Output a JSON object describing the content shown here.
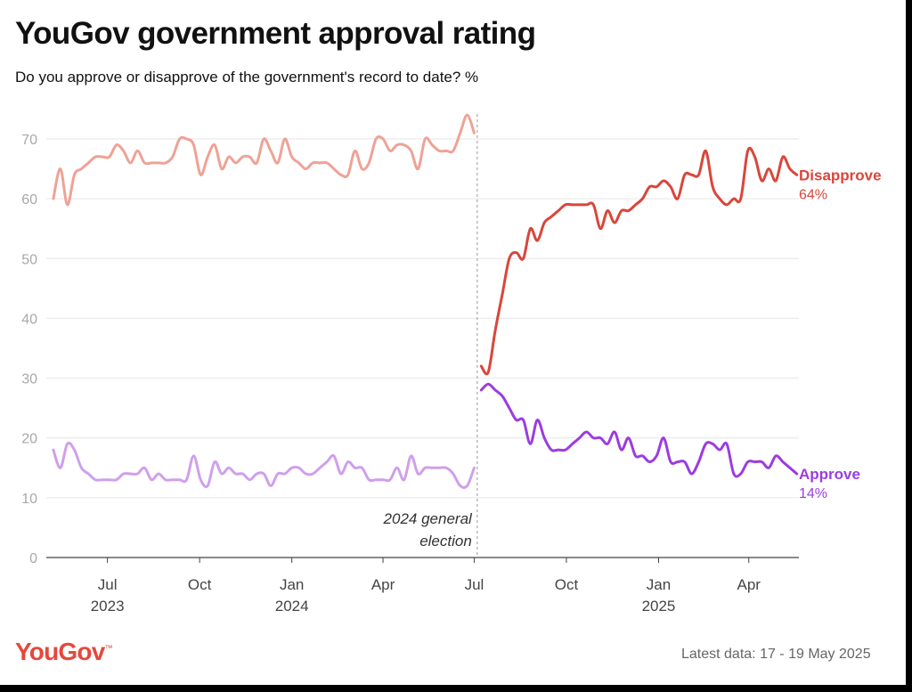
{
  "header": {
    "title": "YouGov government approval rating",
    "subtitle": "Do you approve or disapprove of the government's record to date? %"
  },
  "footer": {
    "brand": "YouGov",
    "latest": "Latest data: 17 - 19 May 2025"
  },
  "colors": {
    "disapprove": "#d9463b",
    "disapprove_before": "#eea296",
    "approve": "#9b3ce0",
    "approve_before": "#cf9fec",
    "grid": "#e6e6e6",
    "divider": "#aaaaaa",
    "brand": "#e4483d"
  },
  "chart_data": {
    "type": "line",
    "title": "YouGov government approval rating",
    "subtitle": "Do you approve or disapprove of the government's record to date? %",
    "ylabel": "",
    "ylim": [
      0,
      70
    ],
    "yticks": [
      0,
      10,
      20,
      30,
      40,
      50,
      60,
      70
    ],
    "xlim": [
      "2023-05-01",
      "2025-05-21"
    ],
    "x_ticks": [
      {
        "date": "2023-07-01",
        "label": "Jul",
        "year": "2023"
      },
      {
        "date": "2023-10-01",
        "label": "Oct",
        "year": ""
      },
      {
        "date": "2024-01-01",
        "label": "Jan",
        "year": "2024"
      },
      {
        "date": "2024-04-01",
        "label": "Apr",
        "year": ""
      },
      {
        "date": "2024-07-01",
        "label": "Jul",
        "year": ""
      },
      {
        "date": "2024-10-01",
        "label": "Oct",
        "year": ""
      },
      {
        "date": "2025-01-01",
        "label": "Jan",
        "year": "2025"
      },
      {
        "date": "2025-04-01",
        "label": "Apr",
        "year": ""
      }
    ],
    "grid": true,
    "legend": "direct labels at right end of lines",
    "annotation": {
      "date": "2024-07-04",
      "text": [
        "2024 general",
        "election"
      ]
    },
    "series": [
      {
        "name": "Disapprove",
        "end_label": "64%",
        "before_election": [
          [
            "2023-05-08",
            60
          ],
          [
            "2023-05-15",
            65
          ],
          [
            "2023-05-22",
            59
          ],
          [
            "2023-05-29",
            64
          ],
          [
            "2023-06-05",
            65
          ],
          [
            "2023-06-12",
            66
          ],
          [
            "2023-06-19",
            67
          ],
          [
            "2023-06-26",
            67
          ],
          [
            "2023-07-03",
            67
          ],
          [
            "2023-07-10",
            69
          ],
          [
            "2023-07-17",
            68
          ],
          [
            "2023-07-24",
            66
          ],
          [
            "2023-07-31",
            68
          ],
          [
            "2023-08-07",
            66
          ],
          [
            "2023-08-14",
            66
          ],
          [
            "2023-08-21",
            66
          ],
          [
            "2023-08-28",
            66
          ],
          [
            "2023-09-04",
            67
          ],
          [
            "2023-09-11",
            70
          ],
          [
            "2023-09-18",
            70
          ],
          [
            "2023-09-25",
            69
          ],
          [
            "2023-10-02",
            64
          ],
          [
            "2023-10-09",
            67
          ],
          [
            "2023-10-16",
            69
          ],
          [
            "2023-10-23",
            65
          ],
          [
            "2023-10-30",
            67
          ],
          [
            "2023-11-06",
            66
          ],
          [
            "2023-11-13",
            67
          ],
          [
            "2023-11-20",
            67
          ],
          [
            "2023-11-27",
            66
          ],
          [
            "2023-12-04",
            70
          ],
          [
            "2023-12-11",
            68
          ],
          [
            "2023-12-18",
            66
          ],
          [
            "2023-12-25",
            70
          ],
          [
            "2024-01-01",
            67
          ],
          [
            "2024-01-08",
            66
          ],
          [
            "2024-01-15",
            65
          ],
          [
            "2024-01-22",
            66
          ],
          [
            "2024-01-29",
            66
          ],
          [
            "2024-02-05",
            66
          ],
          [
            "2024-02-12",
            65
          ],
          [
            "2024-02-19",
            64
          ],
          [
            "2024-02-26",
            64
          ],
          [
            "2024-03-04",
            68
          ],
          [
            "2024-03-11",
            65
          ],
          [
            "2024-03-18",
            66
          ],
          [
            "2024-03-25",
            70
          ],
          [
            "2024-04-01",
            70
          ],
          [
            "2024-04-08",
            68
          ],
          [
            "2024-04-15",
            69
          ],
          [
            "2024-04-22",
            69
          ],
          [
            "2024-04-29",
            68
          ],
          [
            "2024-05-06",
            65
          ],
          [
            "2024-05-13",
            70
          ],
          [
            "2024-05-20",
            69
          ],
          [
            "2024-05-27",
            68
          ],
          [
            "2024-06-03",
            68
          ],
          [
            "2024-06-10",
            68
          ],
          [
            "2024-06-17",
            71
          ],
          [
            "2024-06-24",
            74
          ],
          [
            "2024-07-01",
            71
          ]
        ],
        "after_election": [
          [
            "2024-07-08",
            32
          ],
          [
            "2024-07-15",
            31
          ],
          [
            "2024-07-22",
            38
          ],
          [
            "2024-07-29",
            44
          ],
          [
            "2024-08-05",
            50
          ],
          [
            "2024-08-12",
            51
          ],
          [
            "2024-08-19",
            50
          ],
          [
            "2024-08-26",
            55
          ],
          [
            "2024-09-02",
            53
          ],
          [
            "2024-09-09",
            56
          ],
          [
            "2024-09-16",
            57
          ],
          [
            "2024-09-23",
            58
          ],
          [
            "2024-09-30",
            59
          ],
          [
            "2024-10-07",
            59
          ],
          [
            "2024-10-14",
            59
          ],
          [
            "2024-10-21",
            59
          ],
          [
            "2024-10-28",
            59
          ],
          [
            "2024-11-04",
            55
          ],
          [
            "2024-11-11",
            58
          ],
          [
            "2024-11-18",
            56
          ],
          [
            "2024-11-25",
            58
          ],
          [
            "2024-12-02",
            58
          ],
          [
            "2024-12-09",
            59
          ],
          [
            "2024-12-16",
            60
          ],
          [
            "2024-12-23",
            62
          ],
          [
            "2024-12-30",
            62
          ],
          [
            "2025-01-06",
            63
          ],
          [
            "2025-01-13",
            62
          ],
          [
            "2025-01-20",
            60
          ],
          [
            "2025-01-27",
            64
          ],
          [
            "2025-02-03",
            64
          ],
          [
            "2025-02-10",
            64
          ],
          [
            "2025-02-17",
            68
          ],
          [
            "2025-02-24",
            62
          ],
          [
            "2025-03-03",
            60
          ],
          [
            "2025-03-10",
            59
          ],
          [
            "2025-03-17",
            60
          ],
          [
            "2025-03-24",
            60
          ],
          [
            "2025-03-31",
            68
          ],
          [
            "2025-04-07",
            67
          ],
          [
            "2025-04-14",
            63
          ],
          [
            "2025-04-21",
            65
          ],
          [
            "2025-04-28",
            63
          ],
          [
            "2025-05-05",
            67
          ],
          [
            "2025-05-12",
            65
          ],
          [
            "2025-05-19",
            64
          ]
        ]
      },
      {
        "name": "Approve",
        "end_label": "14%",
        "before_election": [
          [
            "2023-05-08",
            18
          ],
          [
            "2023-05-15",
            15
          ],
          [
            "2023-05-22",
            19
          ],
          [
            "2023-05-29",
            18
          ],
          [
            "2023-06-05",
            15
          ],
          [
            "2023-06-12",
            14
          ],
          [
            "2023-06-19",
            13
          ],
          [
            "2023-06-26",
            13
          ],
          [
            "2023-07-03",
            13
          ],
          [
            "2023-07-10",
            13
          ],
          [
            "2023-07-17",
            14
          ],
          [
            "2023-07-24",
            14
          ],
          [
            "2023-07-31",
            14
          ],
          [
            "2023-08-07",
            15
          ],
          [
            "2023-08-14",
            13
          ],
          [
            "2023-08-21",
            14
          ],
          [
            "2023-08-28",
            13
          ],
          [
            "2023-09-04",
            13
          ],
          [
            "2023-09-11",
            13
          ],
          [
            "2023-09-18",
            13
          ],
          [
            "2023-09-25",
            17
          ],
          [
            "2023-10-02",
            13
          ],
          [
            "2023-10-09",
            12
          ],
          [
            "2023-10-16",
            16
          ],
          [
            "2023-10-23",
            14
          ],
          [
            "2023-10-30",
            15
          ],
          [
            "2023-11-06",
            14
          ],
          [
            "2023-11-13",
            14
          ],
          [
            "2023-11-20",
            13
          ],
          [
            "2023-11-27",
            14
          ],
          [
            "2023-12-04",
            14
          ],
          [
            "2023-12-11",
            12
          ],
          [
            "2023-12-18",
            14
          ],
          [
            "2023-12-25",
            14
          ],
          [
            "2024-01-01",
            15
          ],
          [
            "2024-01-08",
            15
          ],
          [
            "2024-01-15",
            14
          ],
          [
            "2024-01-22",
            14
          ],
          [
            "2024-01-29",
            15
          ],
          [
            "2024-02-05",
            16
          ],
          [
            "2024-02-12",
            17
          ],
          [
            "2024-02-19",
            14
          ],
          [
            "2024-02-26",
            16
          ],
          [
            "2024-03-04",
            15
          ],
          [
            "2024-03-11",
            15
          ],
          [
            "2024-03-18",
            13
          ],
          [
            "2024-03-25",
            13
          ],
          [
            "2024-04-01",
            13
          ],
          [
            "2024-04-08",
            13
          ],
          [
            "2024-04-15",
            15
          ],
          [
            "2024-04-22",
            13
          ],
          [
            "2024-04-29",
            17
          ],
          [
            "2024-05-06",
            14
          ],
          [
            "2024-05-13",
            15
          ],
          [
            "2024-05-20",
            15
          ],
          [
            "2024-05-27",
            15
          ],
          [
            "2024-06-03",
            15
          ],
          [
            "2024-06-10",
            14
          ],
          [
            "2024-06-17",
            12
          ],
          [
            "2024-06-24",
            12
          ],
          [
            "2024-07-01",
            15
          ]
        ],
        "after_election": [
          [
            "2024-07-08",
            28
          ],
          [
            "2024-07-15",
            29
          ],
          [
            "2024-07-22",
            28
          ],
          [
            "2024-07-29",
            27
          ],
          [
            "2024-08-05",
            25
          ],
          [
            "2024-08-12",
            23
          ],
          [
            "2024-08-19",
            23
          ],
          [
            "2024-08-26",
            19
          ],
          [
            "2024-09-02",
            23
          ],
          [
            "2024-09-09",
            20
          ],
          [
            "2024-09-16",
            18
          ],
          [
            "2024-09-23",
            18
          ],
          [
            "2024-09-30",
            18
          ],
          [
            "2024-10-07",
            19
          ],
          [
            "2024-10-14",
            20
          ],
          [
            "2024-10-21",
            21
          ],
          [
            "2024-10-28",
            20
          ],
          [
            "2024-11-04",
            20
          ],
          [
            "2024-11-11",
            19
          ],
          [
            "2024-11-18",
            21
          ],
          [
            "2024-11-25",
            18
          ],
          [
            "2024-12-02",
            20
          ],
          [
            "2024-12-09",
            17
          ],
          [
            "2024-12-16",
            17
          ],
          [
            "2024-12-23",
            16
          ],
          [
            "2024-12-30",
            17
          ],
          [
            "2025-01-06",
            20
          ],
          [
            "2025-01-13",
            16
          ],
          [
            "2025-01-20",
            16
          ],
          [
            "2025-01-27",
            16
          ],
          [
            "2025-02-03",
            14
          ],
          [
            "2025-02-10",
            16
          ],
          [
            "2025-02-17",
            19
          ],
          [
            "2025-02-24",
            19
          ],
          [
            "2025-03-03",
            18
          ],
          [
            "2025-03-10",
            19
          ],
          [
            "2025-03-17",
            14
          ],
          [
            "2025-03-24",
            14
          ],
          [
            "2025-03-31",
            16
          ],
          [
            "2025-04-07",
            16
          ],
          [
            "2025-04-14",
            16
          ],
          [
            "2025-04-21",
            15
          ],
          [
            "2025-04-28",
            17
          ],
          [
            "2025-05-05",
            16
          ],
          [
            "2025-05-12",
            15
          ],
          [
            "2025-05-19",
            14
          ]
        ]
      }
    ]
  }
}
